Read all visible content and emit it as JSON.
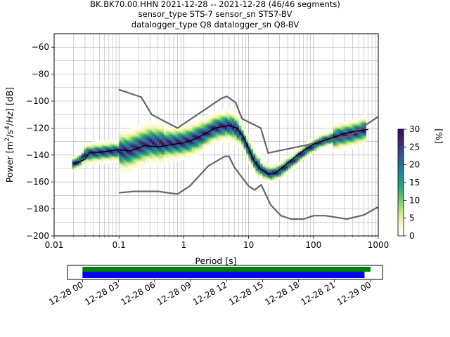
{
  "chart_data": [
    {
      "type": "heatmap",
      "title_lines": [
        "BK.BK70.00.HHN   2021-12-28 -- 2021-12-28  (46/46 segments)",
        "sensor_type STS-7 sensor_sn STS7-BV",
        "datalogger_type Q8 datalogger_sn Q8-BV"
      ],
      "xlabel": "Period [s]",
      "ylabel": "Power [m²/s⁴/Hz] [dB]",
      "xscale": "log",
      "xlim": [
        0.01,
        1000
      ],
      "ylim": [
        -200,
        -50
      ],
      "x_ticks": [
        0.01,
        0.1,
        1,
        10,
        100,
        1000
      ],
      "x_tick_labels": [
        "0.01",
        "0.1",
        "1",
        "10",
        "100",
        "1000"
      ],
      "y_ticks": [
        -200,
        -180,
        -160,
        -140,
        -120,
        -100,
        -80,
        -60
      ],
      "y_tick_labels": [
        "−200",
        "−180",
        "−160",
        "−140",
        "−120",
        "−100",
        "−80",
        "−60"
      ],
      "grid": true,
      "colorbar": {
        "label": "[%]",
        "range": [
          0,
          30
        ],
        "ticks": [
          0,
          5,
          10,
          15,
          20,
          25,
          30
        ],
        "tick_labels": [
          "0",
          "5",
          "10",
          "15",
          "20",
          "25",
          "30"
        ],
        "colormap_stops": [
          "#ffffff",
          "#fbf7c8",
          "#c9e885",
          "#74c96a",
          "#2fa87e",
          "#21908d",
          "#2d6e8e",
          "#3b4a8a",
          "#43257a",
          "#3a0a5c"
        ]
      },
      "series": [
        {
          "role": "noise-model-high",
          "color": "#666666",
          "points": [
            [
              0.1,
              -91.5
            ],
            [
              0.22,
              -97
            ],
            [
              0.32,
              -110
            ],
            [
              0.8,
              -120
            ],
            [
              3.8,
              -98
            ],
            [
              4.6,
              -96.5
            ],
            [
              6.3,
              -101
            ],
            [
              7.9,
              -113
            ],
            [
              15.4,
              -120
            ],
            [
              20,
              -138.5
            ],
            [
              354,
              -126
            ],
            [
              1000,
              -111.5
            ]
          ]
        },
        {
          "role": "noise-model-low",
          "color": "#666666",
          "points": [
            [
              0.1,
              -168
            ],
            [
              0.17,
              -167
            ],
            [
              0.4,
              -167
            ],
            [
              0.8,
              -169
            ],
            [
              1.24,
              -163
            ],
            [
              2.4,
              -148
            ],
            [
              4.3,
              -141
            ],
            [
              5,
              -141
            ],
            [
              6,
              -149
            ],
            [
              10,
              -163
            ],
            [
              12.4,
              -166
            ],
            [
              15.6,
              -162
            ],
            [
              21.9,
              -177
            ],
            [
              31.6,
              -185
            ],
            [
              45,
              -187.5
            ],
            [
              70,
              -187.5
            ],
            [
              101,
              -185
            ],
            [
              154,
              -185
            ],
            [
              328,
              -187.5
            ],
            [
              600,
              -184.5
            ],
            [
              1000,
              -178.5
            ]
          ]
        },
        {
          "role": "mode",
          "color": "#000000",
          "points": [
            [
              0.02,
              -147
            ],
            [
              0.03,
              -143
            ],
            [
              0.035,
              -138
            ],
            [
              0.05,
              -138
            ],
            [
              0.1,
              -136
            ],
            [
              0.15,
              -137
            ],
            [
              0.25,
              -133
            ],
            [
              0.4,
              -134
            ],
            [
              0.7,
              -132
            ],
            [
              1,
              -131
            ],
            [
              1.5,
              -128
            ],
            [
              2.2,
              -124
            ],
            [
              3,
              -120
            ],
            [
              5,
              -118
            ],
            [
              6.5,
              -120
            ],
            [
              8,
              -125
            ],
            [
              10,
              -135
            ],
            [
              12,
              -144
            ],
            [
              15,
              -150
            ],
            [
              20,
              -154
            ],
            [
              25,
              -154
            ],
            [
              40,
              -146
            ],
            [
              60,
              -139
            ],
            [
              100,
              -132
            ],
            [
              200,
              -127
            ],
            [
              300,
              -124
            ],
            [
              500,
              -122
            ],
            [
              700,
              -121
            ]
          ]
        },
        {
          "role": "psd-band-center",
          "points": [
            [
              0.019,
              -147
            ],
            [
              0.025,
              -144
            ],
            [
              0.031,
              -139
            ],
            [
              0.05,
              -138
            ],
            [
              0.08,
              -137
            ],
            [
              0.1,
              -137
            ],
            [
              0.14,
              -137
            ],
            [
              0.2,
              -134
            ],
            [
              0.3,
              -131
            ],
            [
              0.5,
              -131.5
            ],
            [
              0.8,
              -131
            ],
            [
              1.2,
              -129.5
            ],
            [
              2,
              -125
            ],
            [
              3,
              -120
            ],
            [
              4.5,
              -118
            ],
            [
              6,
              -119
            ],
            [
              7.5,
              -124
            ],
            [
              9,
              -131
            ],
            [
              11,
              -140
            ],
            [
              13.5,
              -147
            ],
            [
              17,
              -152
            ],
            [
              22,
              -154
            ],
            [
              30,
              -152
            ],
            [
              50,
              -144
            ],
            [
              80,
              -136
            ],
            [
              130,
              -130
            ],
            [
              250,
              -126
            ],
            [
              400,
              -124
            ],
            [
              650,
              -121
            ]
          ]
        }
      ]
    },
    {
      "type": "bar",
      "role": "data-availability",
      "x_tick_labels": [
        "12-28 00",
        "12-28 03",
        "12-28 06",
        "12-28 09",
        "12-28 12",
        "12-28 15",
        "12-28 18",
        "12-28 21",
        "12-29 00"
      ],
      "xlim_hours": [
        -1.25,
        25
      ],
      "series": [
        {
          "role": "data-coverage",
          "color": "#008000",
          "start_hour": 0,
          "end_hour": 24.0
        },
        {
          "role": "psd-segments",
          "color": "#0000ff",
          "start_hour": 0,
          "end_hour": 23.5
        }
      ]
    }
  ]
}
